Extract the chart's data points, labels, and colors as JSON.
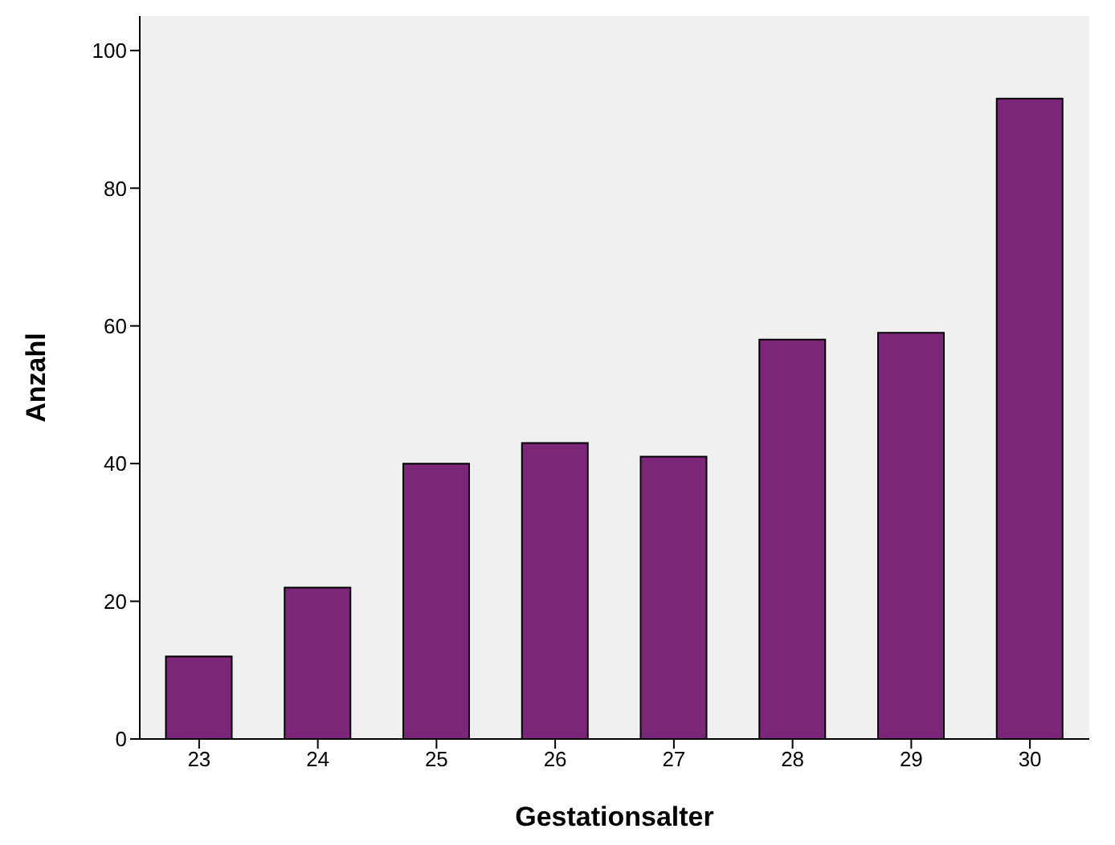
{
  "chart_data": {
    "type": "bar",
    "xlabel": "Gestationsalter",
    "ylabel": "Anzahl",
    "categories": [
      "23",
      "24",
      "25",
      "26",
      "27",
      "28",
      "29",
      "30"
    ],
    "values": [
      12,
      22,
      40,
      43,
      41,
      58,
      59,
      93
    ],
    "color": "#7b2679",
    "ylim": [
      0,
      105
    ],
    "yticks": [
      0,
      20,
      40,
      60,
      80,
      100
    ],
    "grid": false,
    "legend": false
  }
}
